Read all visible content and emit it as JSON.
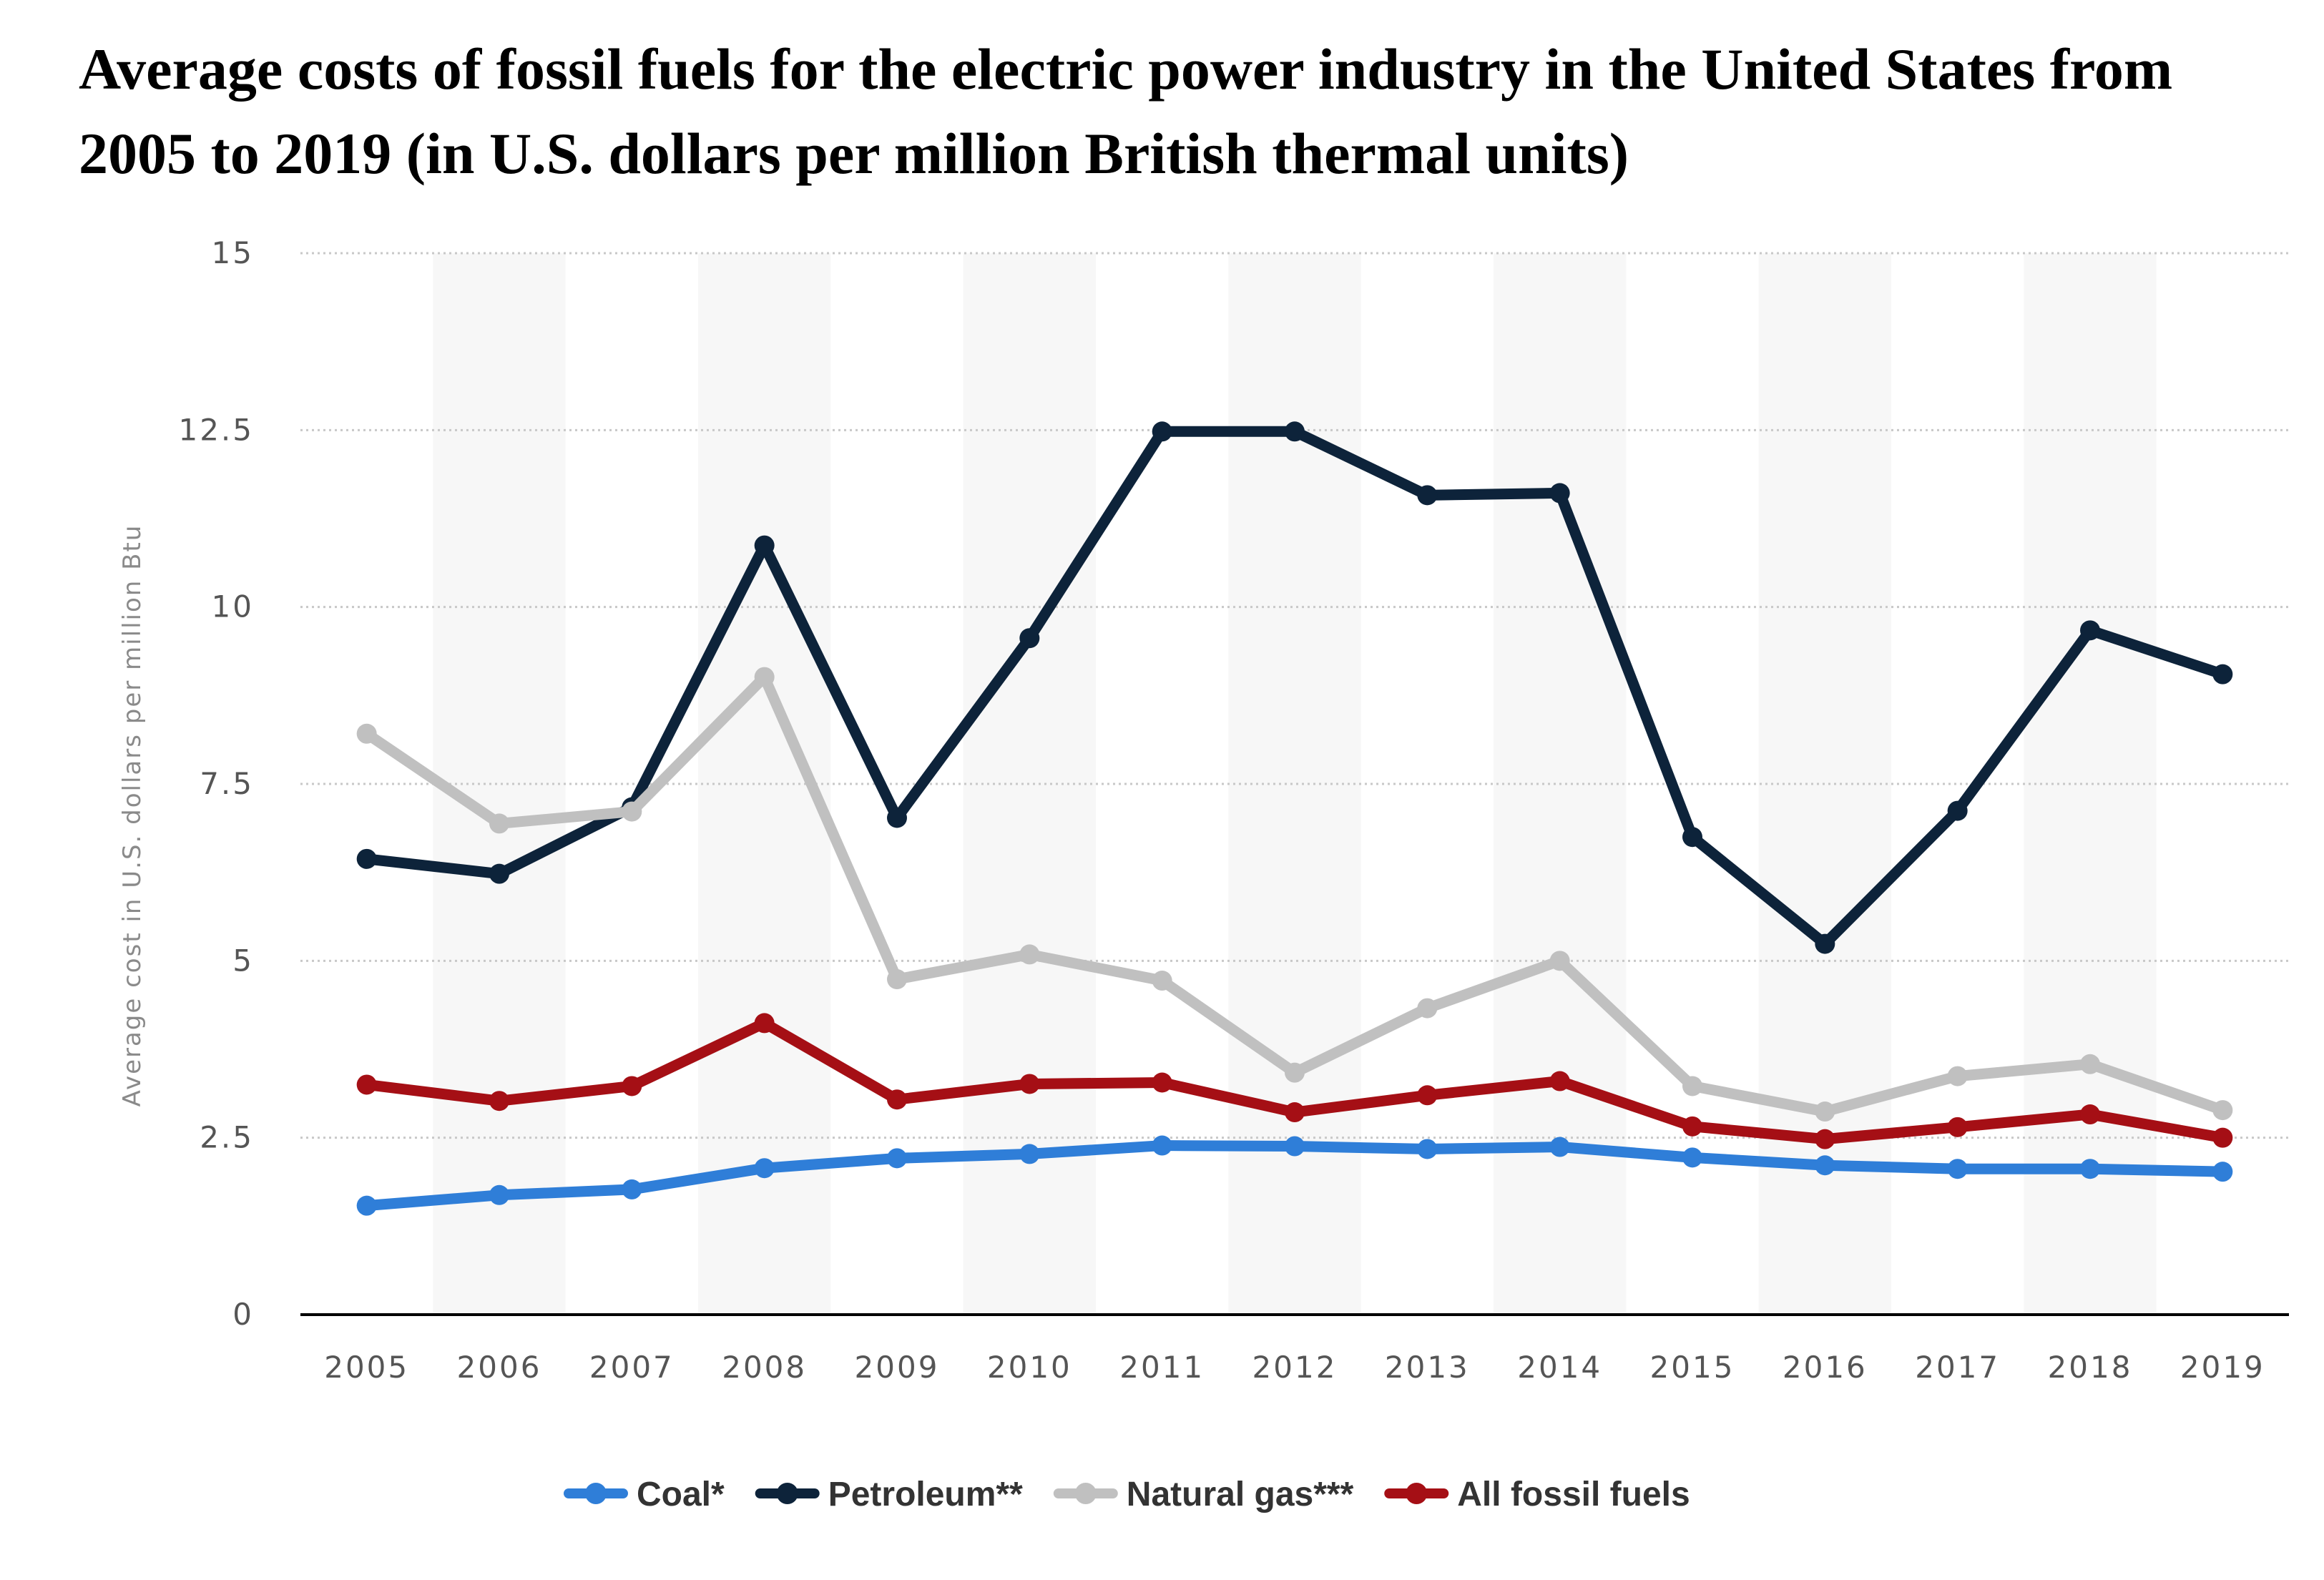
{
  "chart_data": {
    "type": "line",
    "title": "Average costs of fossil fuels for the electric power industry in the United States from 2005 to 2019 (in U.S. dollars per million British thermal units)",
    "xlabel": "",
    "ylabel": "Average cost in U.S. dollars per million Btu",
    "ylim": [
      0,
      15
    ],
    "yticks": [
      "0",
      "2.5",
      "5",
      "7.5",
      "10",
      "12.5",
      "15"
    ],
    "ytick_values": [
      0,
      2.5,
      5,
      7.5,
      10,
      12.5,
      15
    ],
    "categories": [
      "2005",
      "2006",
      "2007",
      "2008",
      "2009",
      "2010",
      "2011",
      "2012",
      "2013",
      "2014",
      "2015",
      "2016",
      "2017",
      "2018",
      "2019"
    ],
    "legend_position": "bottom-center",
    "grid": true,
    "series": [
      {
        "name": "Coal*",
        "color": "#2f7ed8",
        "values": [
          1.54,
          1.69,
          1.77,
          2.07,
          2.21,
          2.27,
          2.39,
          2.38,
          2.34,
          2.37,
          2.22,
          2.11,
          2.06,
          2.06,
          2.02
        ]
      },
      {
        "name": "Petroleum**",
        "color": "#0d233a",
        "values": [
          6.44,
          6.23,
          7.17,
          10.87,
          7.02,
          9.56,
          12.48,
          12.48,
          11.58,
          11.61,
          6.75,
          5.24,
          7.12,
          9.67,
          9.05
        ]
      },
      {
        "name": "Natural gas***",
        "color": "#c0c0c0",
        "values": [
          8.21,
          6.94,
          7.11,
          9.01,
          4.74,
          5.09,
          4.72,
          3.42,
          4.33,
          5.0,
          3.23,
          2.87,
          3.37,
          3.54,
          2.89
        ]
      },
      {
        "name": "All fossil fuels",
        "color": "#a50f15",
        "values": [
          3.25,
          3.02,
          3.23,
          4.12,
          3.04,
          3.26,
          3.28,
          2.86,
          3.1,
          3.3,
          2.66,
          2.48,
          2.65,
          2.83,
          2.5
        ]
      }
    ]
  }
}
